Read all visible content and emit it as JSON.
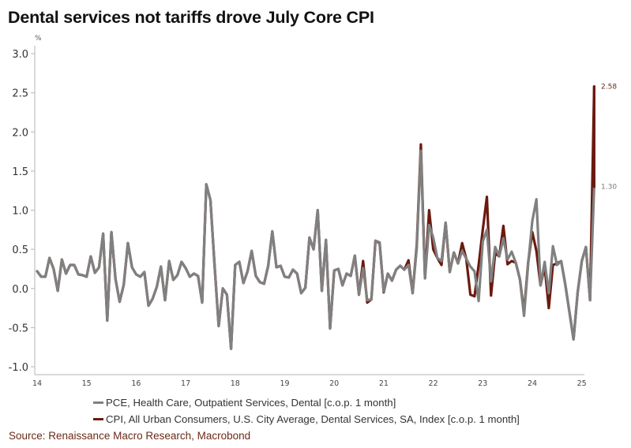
{
  "title": "Dental services not tariffs drove July Core CPI",
  "source": "Source: Renaissance Macro Research, Macrobond",
  "colors": {
    "pce": "#808080",
    "cpi": "#6b1a10",
    "axis": "#c0c0c0",
    "tick_text": "#333333",
    "source": "#6b2a1a"
  },
  "chart_data": {
    "type": "line",
    "title": "Dental services not tariffs drove July Core CPI",
    "xlabel": "",
    "ylabel": "%",
    "ylim": [
      -1.0,
      3.0
    ],
    "y_ticks": [
      "3.0",
      "2.5",
      "2.0",
      "1.5",
      "1.0",
      "0.5",
      "0.0",
      "-0.5",
      "-1.0"
    ],
    "y_tick_values": [
      3.0,
      2.5,
      2.0,
      1.5,
      1.0,
      0.5,
      0.0,
      -0.5,
      -1.0
    ],
    "x_ticks": [
      "14",
      "15",
      "16",
      "17",
      "18",
      "19",
      "20",
      "21",
      "22",
      "23",
      "24",
      "25"
    ],
    "x_tick_years": [
      2014,
      2015,
      2016,
      2017,
      2018,
      2019,
      2020,
      2021,
      2022,
      2023,
      2024,
      2025
    ],
    "x_start": "2014-01",
    "x_end": "2025-07",
    "grid": false,
    "legend_position": "bottom",
    "end_labels": [
      {
        "series": "CPI",
        "text": "2.58",
        "value": 2.58
      },
      {
        "series": "PCE",
        "text": "1.30",
        "value": 1.3
      }
    ],
    "series": [
      {
        "name": "PCE, Health Care, Outpatient Services, Dental [c.o.p. 1 month]",
        "short": "PCE",
        "color": "#808080",
        "values": [
          0.22,
          0.15,
          0.15,
          0.39,
          0.25,
          -0.03,
          0.37,
          0.19,
          0.3,
          0.3,
          0.18,
          0.17,
          0.15,
          0.41,
          0.2,
          0.27,
          0.7,
          -0.41,
          0.72,
          0.12,
          -0.17,
          0.05,
          0.58,
          0.27,
          0.18,
          0.15,
          0.21,
          -0.22,
          -0.13,
          0.02,
          0.28,
          -0.15,
          0.35,
          0.11,
          0.17,
          0.34,
          0.26,
          0.15,
          0.19,
          0.16,
          -0.18,
          1.33,
          1.13,
          0.3,
          -0.48,
          0.0,
          -0.08,
          -0.77,
          0.3,
          0.34,
          0.07,
          0.22,
          0.48,
          0.16,
          0.08,
          0.06,
          0.29,
          0.73,
          0.27,
          0.29,
          0.15,
          0.14,
          0.24,
          0.19,
          -0.06,
          0.01,
          0.65,
          0.5,
          1.0,
          -0.03,
          0.62,
          -0.51,
          0.23,
          0.25,
          0.04,
          0.19,
          0.16,
          0.42,
          -0.08,
          0.26,
          -0.15,
          -0.14,
          0.61,
          0.59,
          -0.04,
          0.19,
          0.1,
          0.24,
          0.29,
          0.24,
          0.3,
          -0.06,
          0.51,
          1.76,
          0.13,
          0.81,
          0.65,
          0.39,
          0.35,
          0.84,
          0.21,
          0.46,
          0.32,
          0.48,
          0.38,
          0.28,
          0.22,
          -0.16,
          0.6,
          0.75,
          0.09,
          0.53,
          0.41,
          0.64,
          0.37,
          0.47,
          0.33,
          0.12,
          -0.35,
          0.31,
          0.86,
          1.14,
          0.04,
          0.34,
          -0.06,
          0.54,
          0.3,
          0.35,
          0.05,
          -0.3,
          -0.65,
          -0.05,
          0.35,
          0.53,
          -0.15,
          1.3
        ],
        "end_value": 1.3
      },
      {
        "name": "CPI, All Urban Consumers, U.S. City Average, Dental Services, SA, Index [c.o.p. 1 month]",
        "short": "CPI",
        "color": "#6b1a10",
        "values": [
          0.22,
          0.15,
          0.15,
          0.39,
          0.25,
          -0.03,
          0.37,
          0.19,
          0.3,
          0.3,
          0.18,
          0.17,
          0.15,
          0.41,
          0.2,
          0.27,
          0.7,
          -0.41,
          0.72,
          0.12,
          -0.17,
          0.05,
          0.58,
          0.27,
          0.18,
          0.15,
          0.21,
          -0.22,
          -0.13,
          0.02,
          0.28,
          -0.15,
          0.35,
          0.11,
          0.17,
          0.34,
          0.26,
          0.15,
          0.19,
          0.16,
          -0.18,
          1.33,
          1.13,
          0.3,
          -0.48,
          0.0,
          -0.08,
          -0.77,
          0.3,
          0.34,
          0.07,
          0.22,
          0.48,
          0.16,
          0.08,
          0.06,
          0.29,
          0.73,
          0.27,
          0.29,
          0.15,
          0.14,
          0.24,
          0.19,
          -0.06,
          0.01,
          0.65,
          0.5,
          1.0,
          -0.03,
          0.62,
          -0.51,
          0.23,
          0.25,
          0.04,
          0.19,
          0.16,
          0.42,
          -0.08,
          0.35,
          -0.18,
          -0.14,
          0.61,
          0.58,
          -0.05,
          0.19,
          0.1,
          0.24,
          0.29,
          0.24,
          0.36,
          -0.06,
          0.55,
          1.84,
          0.13,
          1.0,
          0.5,
          0.39,
          0.3,
          0.84,
          0.21,
          0.46,
          0.32,
          0.58,
          0.38,
          -0.08,
          -0.1,
          0.3,
          0.75,
          1.17,
          -0.09,
          0.45,
          0.41,
          0.8,
          0.31,
          0.35,
          0.33,
          0.12,
          -0.3,
          0.33,
          0.72,
          0.48,
          0.04,
          0.28,
          -0.25,
          0.3,
          0.32,
          0.35,
          0.05,
          -0.3,
          -0.65,
          -0.05,
          0.35,
          0.53,
          -0.15,
          2.58
        ],
        "end_value": 2.58
      }
    ]
  }
}
